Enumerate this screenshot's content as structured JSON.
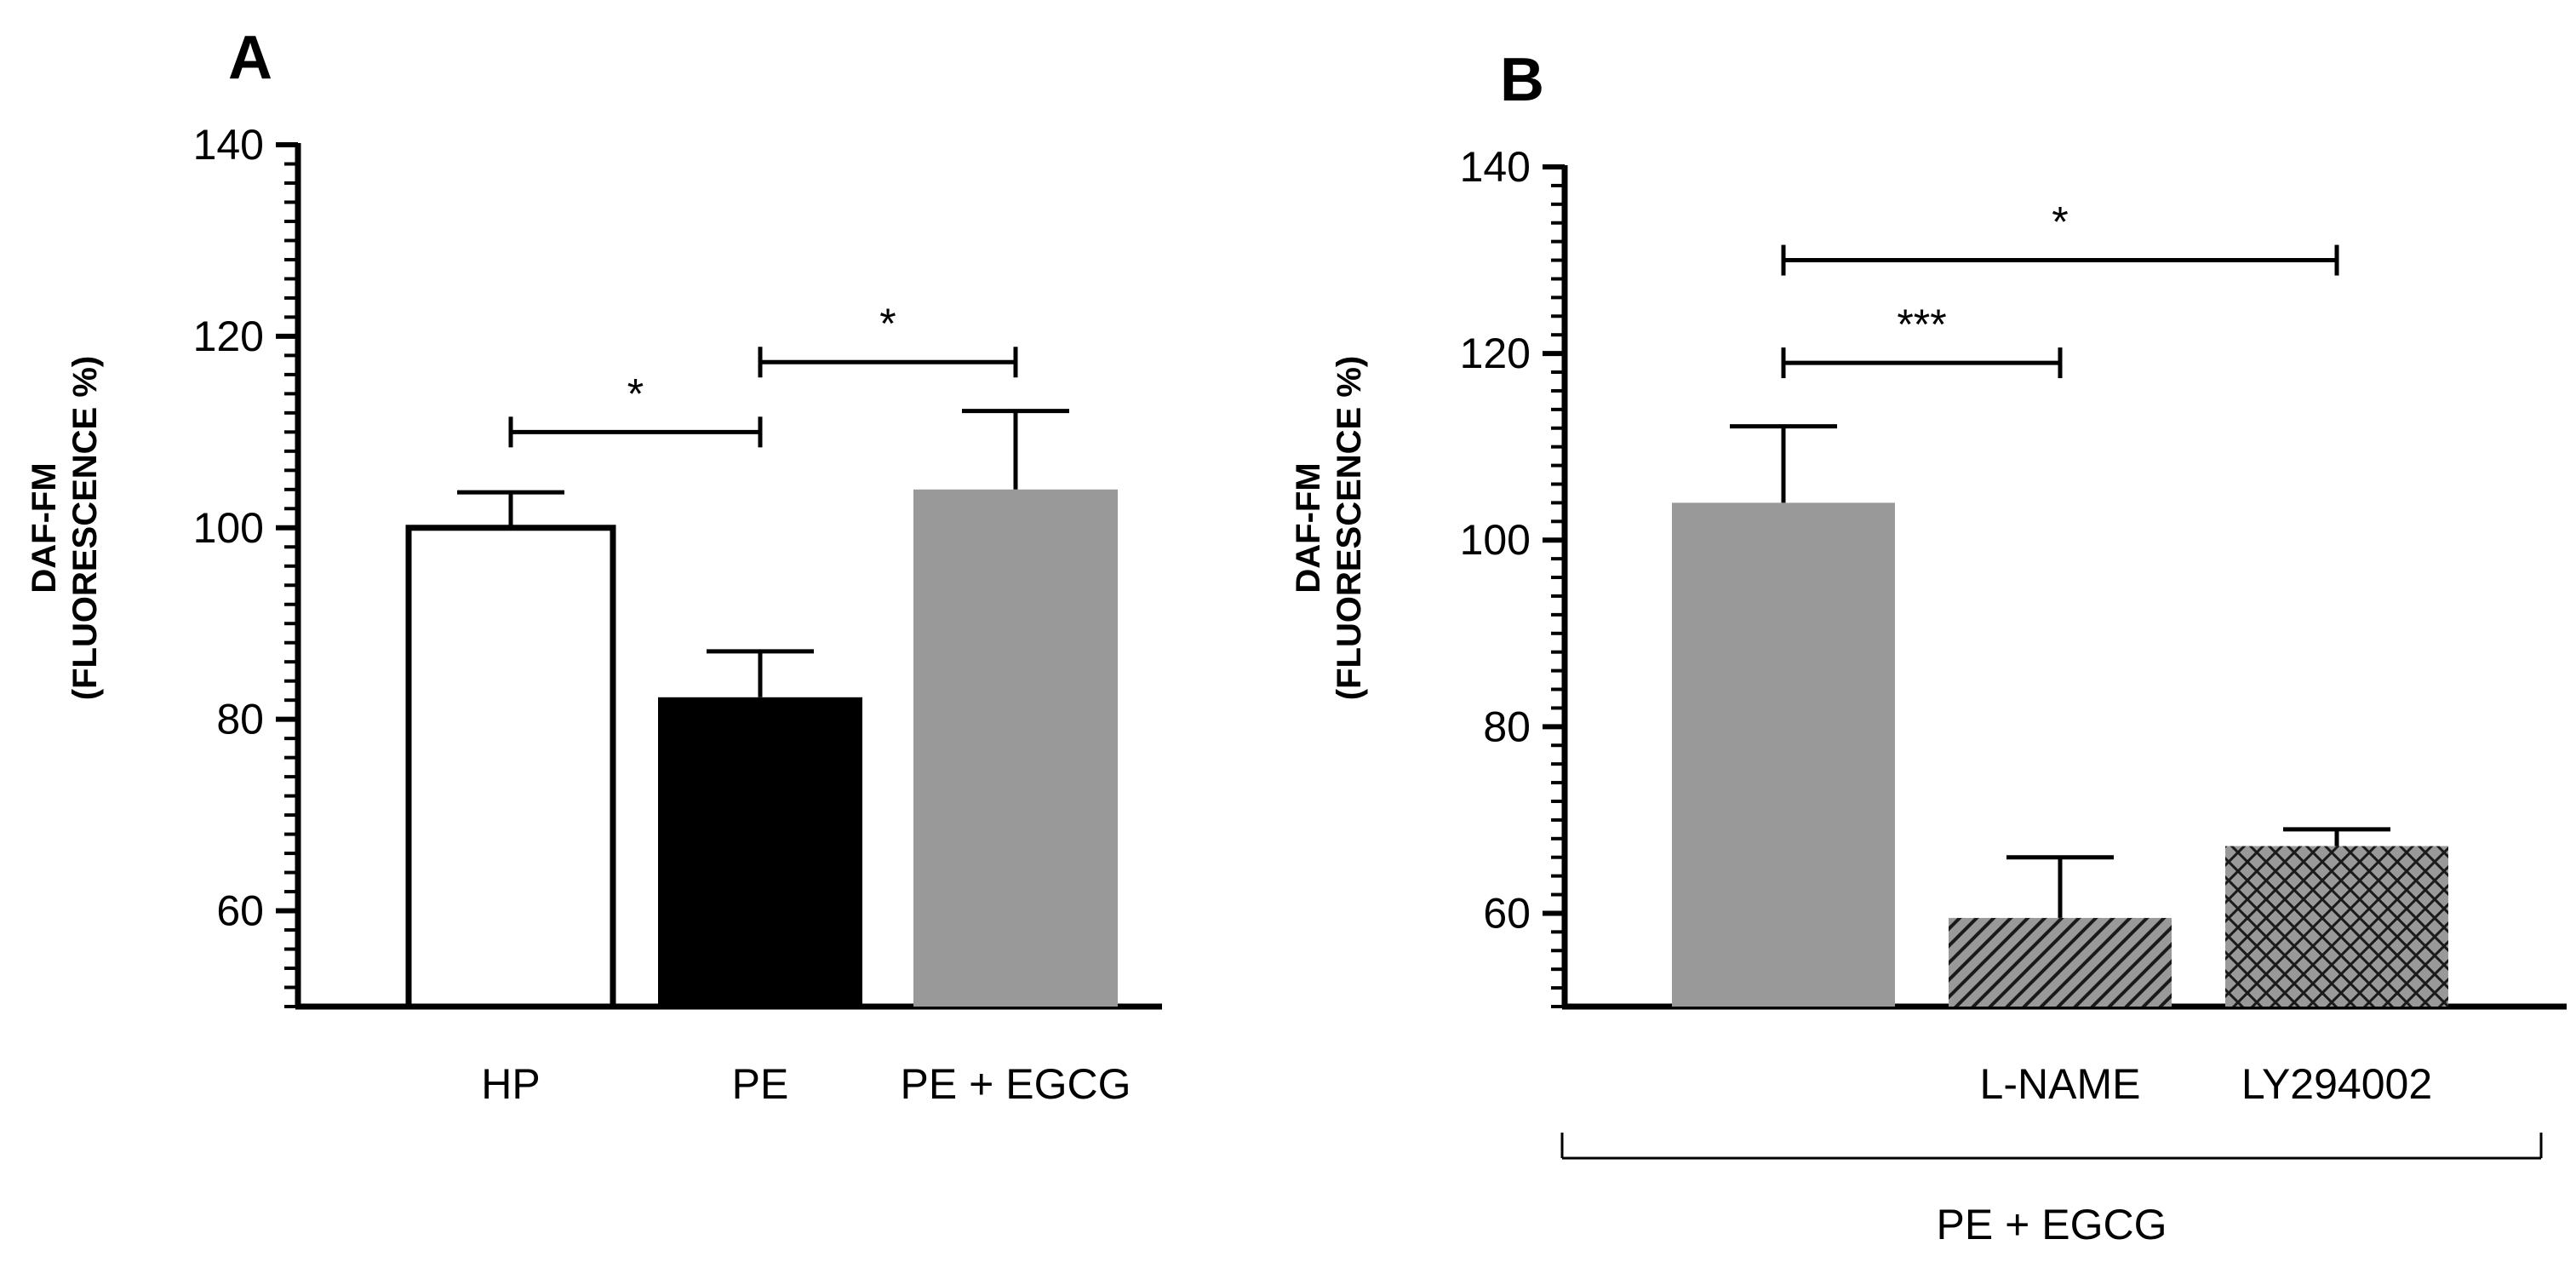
{
  "chart_data": [
    {
      "panel": "A",
      "type": "bar",
      "ylabel_line1": "DAF-FM",
      "ylabel_line2": "(FLUORESCENCE %)",
      "ylim": [
        50,
        140
      ],
      "yticks": [
        60,
        80,
        100,
        120,
        140
      ],
      "categories": [
        "HP",
        "PE",
        "PE + EGCG"
      ],
      "values": [
        100,
        82.3,
        104
      ],
      "errors": [
        3.7,
        4.8,
        8.2
      ],
      "fills": [
        "white",
        "black",
        "gray"
      ],
      "significance": [
        {
          "from": 0,
          "to": 1,
          "y": 110,
          "label": "*"
        },
        {
          "from": 1,
          "to": 2,
          "y": 117.3,
          "label": "*"
        }
      ]
    },
    {
      "panel": "B",
      "type": "bar",
      "ylabel_line1": "DAF-FM",
      "ylabel_line2": "(FLUORESCENCE %)",
      "ylim": [
        50,
        140
      ],
      "yticks": [
        60,
        80,
        100,
        120,
        140
      ],
      "categories": [
        "",
        "L-NAME",
        "LY294002"
      ],
      "values": [
        104,
        59.5,
        67.2
      ],
      "errors": [
        8.2,
        6.5,
        1.8
      ],
      "fills": [
        "gray",
        "gray-hatch",
        "gray-crosshatch"
      ],
      "group_label": "PE + EGCG",
      "significance": [
        {
          "from": 0,
          "to": 1,
          "y": 119,
          "label": "***"
        },
        {
          "from": 0,
          "to": 2,
          "y": 130,
          "label": "*"
        }
      ]
    }
  ]
}
